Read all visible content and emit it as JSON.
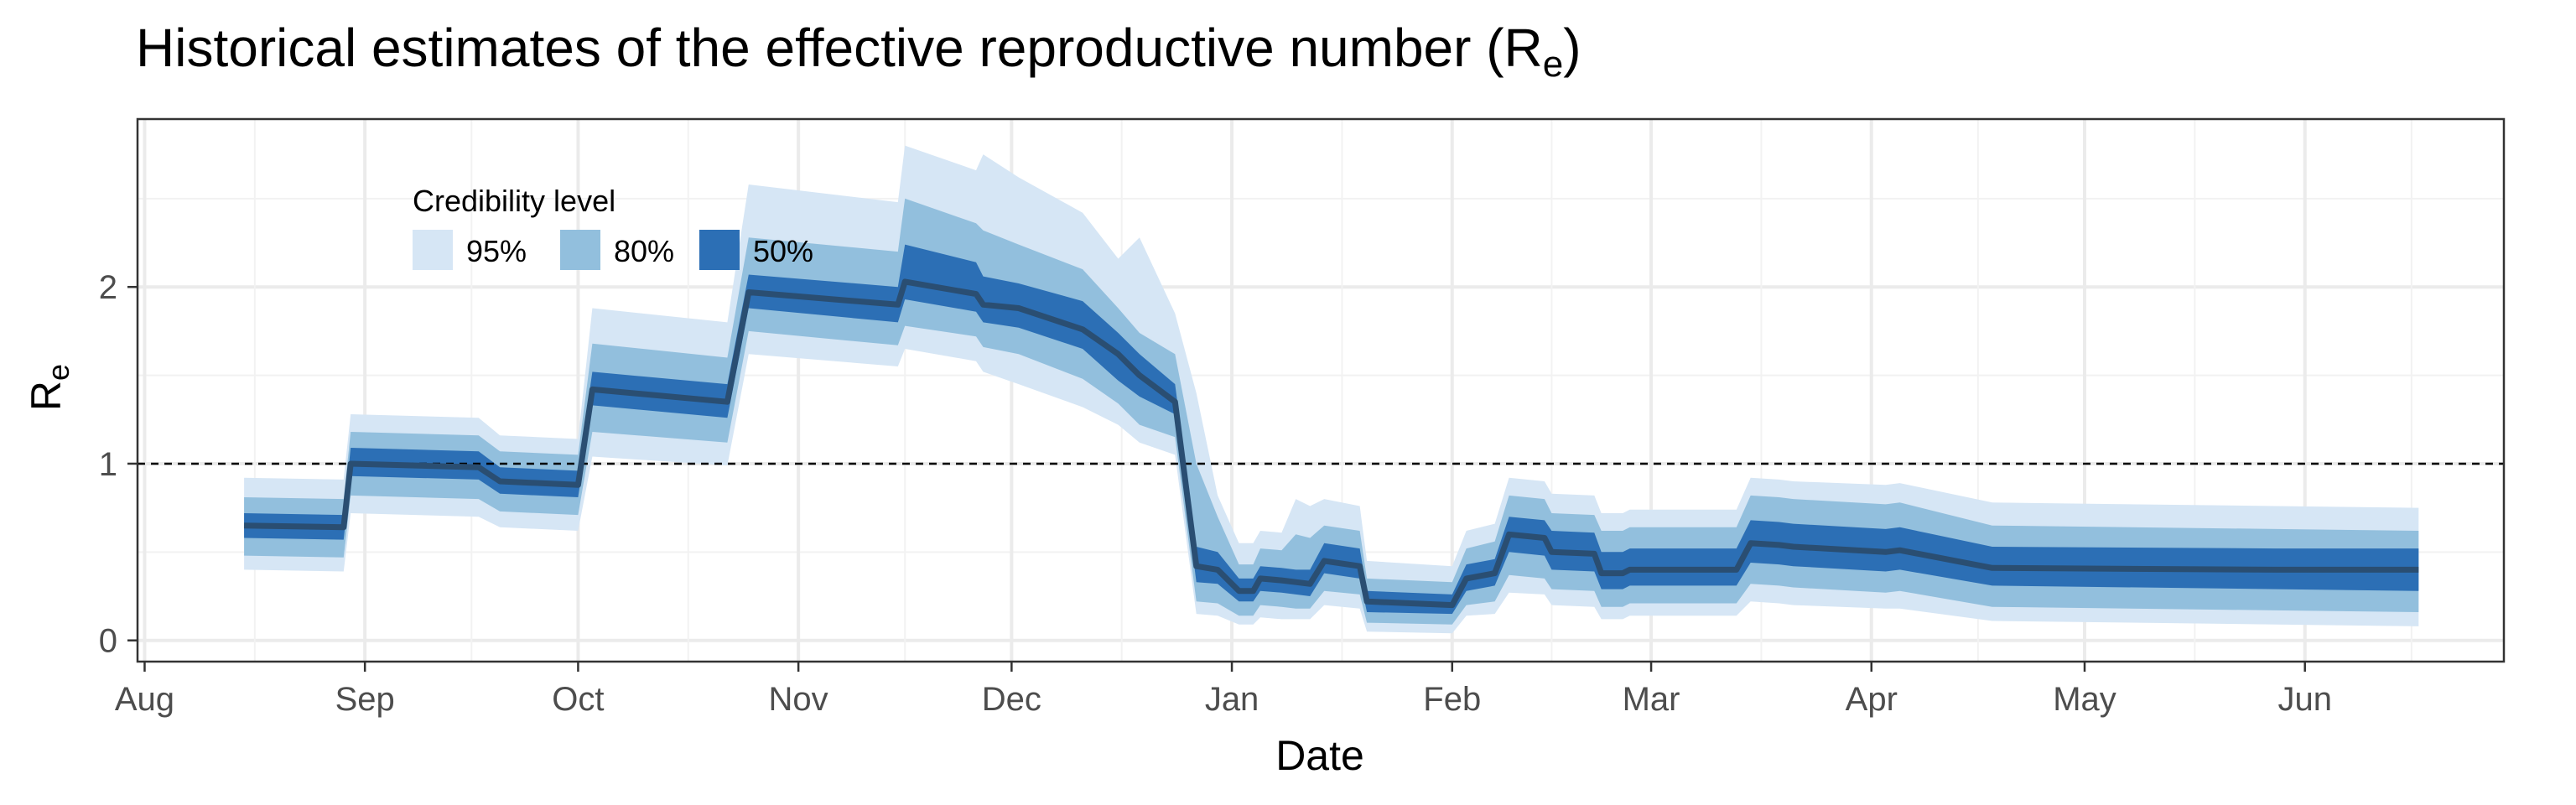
{
  "chart_data": {
    "type": "area",
    "title": "Historical estimates of the effective reproductive number (R",
    "title_subscript": "e",
    "title_suffix": ")",
    "xlabel": "Date",
    "ylabel": "R",
    "ylabel_subscript": "e",
    "ylim": [
      -0.12,
      2.95
    ],
    "xlim": [
      -1,
      332
    ],
    "y_ticks": [
      0,
      1,
      2
    ],
    "x_ticks": [
      {
        "label": "Aug",
        "day": 0
      },
      {
        "label": "Sep",
        "day": 31
      },
      {
        "label": "Oct",
        "day": 61
      },
      {
        "label": "Nov",
        "day": 92
      },
      {
        "label": "Dec",
        "day": 122
      },
      {
        "label": "Jan",
        "day": 153
      },
      {
        "label": "Feb",
        "day": 184
      },
      {
        "label": "Mar",
        "day": 212
      },
      {
        "label": "Apr",
        "day": 243
      },
      {
        "label": "May",
        "day": 273
      },
      {
        "label": "Jun",
        "day": 304
      }
    ],
    "grid": true,
    "reference_line": {
      "y": 1,
      "style": "dashed"
    },
    "legend": {
      "title": "Credibility level",
      "placement": "top-left",
      "entries": [
        {
          "label": "95%",
          "color": "#d6e6f5"
        },
        {
          "label": "80%",
          "color": "#92bfdd"
        },
        {
          "label": "50%",
          "color": "#2c6fb5"
        }
      ]
    },
    "colors": {
      "band95": "#d6e6f5",
      "band80": "#92bfdd",
      "band50": "#2c6fb5",
      "median": "#2a4e72",
      "refline": "#000000"
    },
    "x_unit": "days since Aug 1",
    "series": {
      "x": [
        14,
        28,
        29,
        47,
        50,
        61,
        63,
        82,
        85,
        106,
        107,
        117,
        118,
        123,
        132,
        137,
        140,
        145,
        148,
        151,
        154,
        156,
        157,
        160,
        162,
        164,
        166,
        171,
        172,
        184,
        186,
        190,
        192,
        197,
        198,
        204,
        205,
        208,
        209,
        224,
        226,
        230,
        232,
        245,
        247,
        260,
        300,
        320
      ],
      "median": [
        0.65,
        0.64,
        1.0,
        0.98,
        0.9,
        0.88,
        1.42,
        1.35,
        1.97,
        1.9,
        2.03,
        1.96,
        1.9,
        1.88,
        1.76,
        1.62,
        1.5,
        1.35,
        0.42,
        0.4,
        0.28,
        0.28,
        0.35,
        0.34,
        0.33,
        0.32,
        0.45,
        0.42,
        0.22,
        0.2,
        0.35,
        0.38,
        0.6,
        0.58,
        0.5,
        0.49,
        0.38,
        0.38,
        0.4,
        0.4,
        0.55,
        0.54,
        0.53,
        0.5,
        0.51,
        0.41,
        0.4,
        0.4
      ],
      "lo50": [
        0.58,
        0.57,
        0.93,
        0.91,
        0.83,
        0.81,
        1.33,
        1.26,
        1.88,
        1.8,
        1.93,
        1.86,
        1.8,
        1.77,
        1.65,
        1.47,
        1.38,
        1.28,
        0.33,
        0.32,
        0.22,
        0.22,
        0.28,
        0.27,
        0.26,
        0.25,
        0.38,
        0.35,
        0.16,
        0.15,
        0.28,
        0.31,
        0.5,
        0.48,
        0.4,
        0.39,
        0.29,
        0.29,
        0.31,
        0.31,
        0.44,
        0.43,
        0.42,
        0.39,
        0.4,
        0.31,
        0.29,
        0.28
      ],
      "hi50": [
        0.72,
        0.71,
        1.09,
        1.07,
        0.98,
        0.96,
        1.52,
        1.45,
        2.07,
        2.0,
        2.24,
        2.14,
        2.06,
        2.02,
        1.92,
        1.74,
        1.62,
        1.45,
        0.53,
        0.5,
        0.35,
        0.35,
        0.42,
        0.41,
        0.4,
        0.4,
        0.55,
        0.52,
        0.28,
        0.26,
        0.43,
        0.46,
        0.7,
        0.68,
        0.62,
        0.61,
        0.5,
        0.5,
        0.52,
        0.52,
        0.68,
        0.67,
        0.66,
        0.63,
        0.64,
        0.53,
        0.52,
        0.52
      ],
      "lo80": [
        0.48,
        0.47,
        0.82,
        0.8,
        0.73,
        0.71,
        1.18,
        1.12,
        1.75,
        1.67,
        1.78,
        1.72,
        1.66,
        1.62,
        1.48,
        1.34,
        1.22,
        1.15,
        0.22,
        0.21,
        0.14,
        0.14,
        0.2,
        0.19,
        0.18,
        0.18,
        0.28,
        0.26,
        0.1,
        0.09,
        0.2,
        0.22,
        0.37,
        0.35,
        0.29,
        0.28,
        0.19,
        0.19,
        0.21,
        0.21,
        0.32,
        0.31,
        0.3,
        0.27,
        0.28,
        0.19,
        0.17,
        0.16
      ],
      "hi80": [
        0.81,
        0.8,
        1.18,
        1.16,
        1.07,
        1.05,
        1.68,
        1.6,
        2.28,
        2.2,
        2.5,
        2.36,
        2.32,
        2.24,
        2.1,
        1.88,
        1.74,
        1.62,
        1.0,
        0.7,
        0.43,
        0.43,
        0.52,
        0.51,
        0.6,
        0.58,
        0.65,
        0.62,
        0.35,
        0.33,
        0.52,
        0.56,
        0.82,
        0.8,
        0.72,
        0.71,
        0.62,
        0.62,
        0.64,
        0.64,
        0.82,
        0.81,
        0.8,
        0.77,
        0.78,
        0.65,
        0.63,
        0.62
      ],
      "lo95": [
        0.4,
        0.39,
        0.72,
        0.7,
        0.64,
        0.62,
        1.04,
        0.99,
        1.62,
        1.55,
        1.65,
        1.58,
        1.52,
        1.45,
        1.32,
        1.22,
        1.12,
        1.05,
        0.15,
        0.14,
        0.09,
        0.09,
        0.13,
        0.12,
        0.12,
        0.12,
        0.2,
        0.18,
        0.05,
        0.04,
        0.14,
        0.15,
        0.27,
        0.26,
        0.2,
        0.19,
        0.12,
        0.12,
        0.14,
        0.14,
        0.22,
        0.21,
        0.2,
        0.18,
        0.18,
        0.11,
        0.09,
        0.08
      ],
      "hi95": [
        0.92,
        0.91,
        1.28,
        1.26,
        1.16,
        1.14,
        1.88,
        1.8,
        2.58,
        2.48,
        2.8,
        2.66,
        2.75,
        2.62,
        2.42,
        2.16,
        2.28,
        1.85,
        1.4,
        0.82,
        0.55,
        0.55,
        0.62,
        0.61,
        0.8,
        0.76,
        0.8,
        0.76,
        0.45,
        0.42,
        0.62,
        0.66,
        0.92,
        0.9,
        0.83,
        0.82,
        0.72,
        0.72,
        0.74,
        0.74,
        0.92,
        0.91,
        0.9,
        0.88,
        0.89,
        0.78,
        0.76,
        0.75
      ]
    }
  }
}
